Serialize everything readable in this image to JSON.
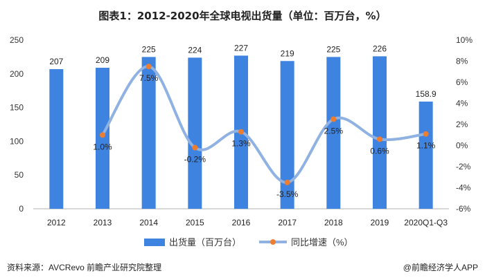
{
  "chart_data": {
    "type": "bar+line",
    "title": "图表1：2012-2020年全球电视出货量（单位：百万台，%）",
    "categories": [
      "2012",
      "2013",
      "2014",
      "2015",
      "2016",
      "2017",
      "2018",
      "2019",
      "2020Q1-Q3"
    ],
    "series": [
      {
        "name": "出货量（百万台）",
        "type": "bar",
        "axis": "left",
        "values": [
          207,
          209,
          225,
          224,
          227,
          219,
          225,
          226,
          158.9
        ],
        "labels": [
          "207",
          "209",
          "225",
          "224",
          "227",
          "219",
          "225",
          "226",
          "158.9"
        ],
        "color": "#3f83e0"
      },
      {
        "name": "同比增速（%）",
        "type": "line",
        "axis": "right",
        "values": [
          null,
          1.0,
          7.5,
          -0.2,
          1.3,
          -3.5,
          2.5,
          0.6,
          1.1
        ],
        "labels": [
          "",
          "1.0%",
          "7.5%",
          "-0.2%",
          "1.3%",
          "-3.5%",
          "2.5%",
          "0.6%",
          "1.1%"
        ],
        "color": "#8fb2e3",
        "marker_color": "#ed7d31"
      }
    ],
    "y_left": {
      "min": 0,
      "max": 250,
      "ticks": [
        0,
        50,
        100,
        150,
        200,
        250
      ],
      "tick_labels": [
        "0",
        "50",
        "100",
        "150",
        "200",
        "250"
      ]
    },
    "y_right": {
      "min": -6,
      "max": 10,
      "ticks": [
        -6,
        -4,
        -2,
        0,
        2,
        4,
        6,
        8,
        10
      ],
      "tick_labels": [
        "-6%",
        "-4%",
        "-2%",
        "0%",
        "2%",
        "4%",
        "6%",
        "8%",
        "10%"
      ]
    },
    "grid": false,
    "legend_position": "bottom"
  },
  "footer": {
    "source": "资料来源：AVCRevo 前瞻产业研究院整理",
    "brand": "@前瞻经济学人APP"
  }
}
